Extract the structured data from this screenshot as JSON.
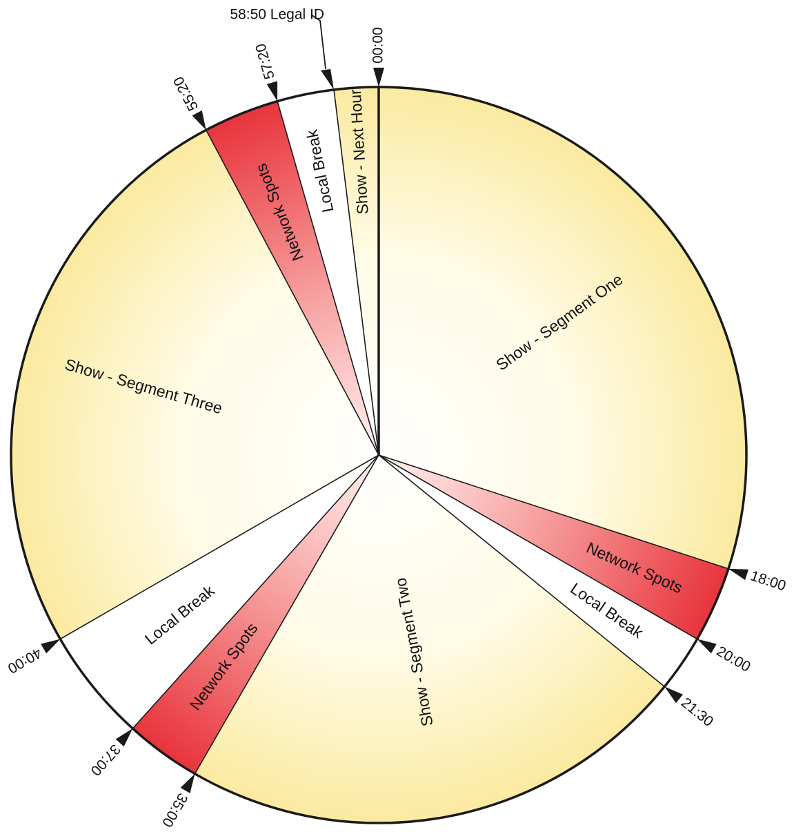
{
  "clock": {
    "total_seconds": 3600,
    "colors": {
      "show": "#fffbe6",
      "show_edge": "#fbeaa0",
      "network": "#e8343c",
      "network_light": "#fff4f2",
      "local": "#ffffff",
      "line": "#1a1a1a"
    },
    "segments": [
      {
        "label": "Show - Segment One",
        "start": "00:00",
        "end": "18:00",
        "kind": "show"
      },
      {
        "label": "Network Spots",
        "start": "18:00",
        "end": "20:00",
        "kind": "network"
      },
      {
        "label": "Local Break",
        "start": "20:00",
        "end": "21:30",
        "kind": "local"
      },
      {
        "label": "Show - Segment Two",
        "start": "21:30",
        "end": "35:00",
        "kind": "show"
      },
      {
        "label": "Network Spots",
        "start": "35:00",
        "end": "37:00",
        "kind": "network"
      },
      {
        "label": "Local Break",
        "start": "37:00",
        "end": "40:00",
        "kind": "local"
      },
      {
        "label": "Show - Segment Three",
        "start": "40:00",
        "end": "55:20",
        "kind": "show"
      },
      {
        "label": "Network Spots",
        "start": "55:20",
        "end": "57:20",
        "kind": "network"
      },
      {
        "label": "Local Break",
        "start": "57:20",
        "end": "58:50",
        "kind": "local"
      },
      {
        "label": "Show - Next Hour",
        "start": "58:50",
        "end": "60:00",
        "kind": "show"
      }
    ],
    "markers": [
      {
        "time": "00:00",
        "label": "00:00"
      },
      {
        "time": "18:00",
        "label": "18:00"
      },
      {
        "time": "20:00",
        "label": "20:00"
      },
      {
        "time": "21:30",
        "label": "21:30"
      },
      {
        "time": "35:00",
        "label": "35:00"
      },
      {
        "time": "37:00",
        "label": "37:00"
      },
      {
        "time": "40:00",
        "label": "40:00"
      },
      {
        "time": "55:20",
        "label": "55:20"
      },
      {
        "time": "57:20",
        "label": "57:20"
      }
    ],
    "callout": {
      "time": "58:50",
      "label": "58:50 Legal ID"
    }
  }
}
